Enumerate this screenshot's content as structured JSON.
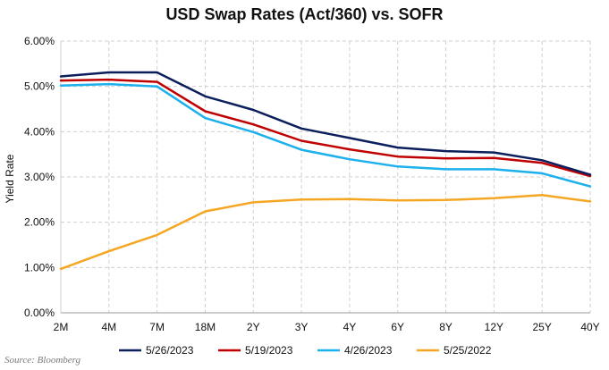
{
  "source": "Source: Bloomberg",
  "chart_data": {
    "type": "line",
    "title": "USD Swap Rates (Act/360) vs. SOFR",
    "xlabel": "",
    "ylabel": "Yield Rate",
    "categories": [
      "2M",
      "4M",
      "7M",
      "18M",
      "2Y",
      "3Y",
      "4Y",
      "6Y",
      "8Y",
      "12Y",
      "25Y",
      "40Y"
    ],
    "ylim": [
      0,
      6
    ],
    "yticks": [
      "0.00%",
      "1.00%",
      "2.00%",
      "3.00%",
      "4.00%",
      "5.00%",
      "6.00%"
    ],
    "grid": true,
    "legend_position": "bottom",
    "series": [
      {
        "name": "5/26/2023",
        "color": "#0b1f5c",
        "values": [
          5.22,
          5.31,
          5.31,
          4.78,
          4.48,
          4.07,
          3.86,
          3.65,
          3.57,
          3.54,
          3.37,
          3.05
        ]
      },
      {
        "name": "5/19/2023",
        "color": "#c00000",
        "values": [
          5.13,
          5.15,
          5.1,
          4.45,
          4.16,
          3.8,
          3.61,
          3.45,
          3.41,
          3.42,
          3.31,
          3.02
        ]
      },
      {
        "name": "4/26/2023",
        "color": "#1cb0ec",
        "values": [
          5.02,
          5.05,
          5.0,
          4.3,
          3.99,
          3.6,
          3.39,
          3.23,
          3.17,
          3.17,
          3.08,
          2.79
        ]
      },
      {
        "name": "5/25/2022",
        "color": "#f5a623",
        "values": [
          0.97,
          1.36,
          1.72,
          2.24,
          2.44,
          2.5,
          2.51,
          2.48,
          2.49,
          2.53,
          2.6,
          2.46
        ]
      }
    ]
  }
}
